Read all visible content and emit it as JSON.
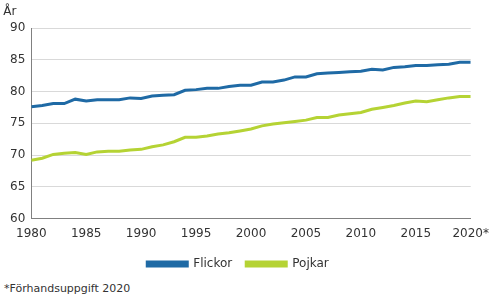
{
  "chart_data": {
    "type": "line",
    "ylabel": "År",
    "footnote": "*Förhandsuppgift 2020",
    "x": [
      1980,
      1981,
      1982,
      1983,
      1984,
      1985,
      1986,
      1987,
      1988,
      1989,
      1990,
      1991,
      1992,
      1993,
      1994,
      1995,
      1996,
      1997,
      1998,
      1999,
      2000,
      2001,
      2002,
      2003,
      2004,
      2005,
      2006,
      2007,
      2008,
      2009,
      2010,
      2011,
      2012,
      2013,
      2014,
      2015,
      2016,
      2017,
      2018,
      2019,
      2020
    ],
    "series": [
      {
        "name": "Flickor",
        "color": "#1f6aa5",
        "values": [
          77.6,
          77.8,
          78.1,
          78.1,
          78.8,
          78.5,
          78.7,
          78.7,
          78.7,
          79.0,
          78.9,
          79.3,
          79.4,
          79.5,
          80.2,
          80.3,
          80.5,
          80.5,
          80.8,
          81.0,
          81.0,
          81.5,
          81.5,
          81.8,
          82.3,
          82.3,
          82.8,
          82.9,
          83.0,
          83.1,
          83.2,
          83.5,
          83.4,
          83.8,
          83.9,
          84.1,
          84.1,
          84.2,
          84.3,
          84.6,
          84.6
        ]
      },
      {
        "name": "Pojkar",
        "color": "#b5d334",
        "values": [
          69.2,
          69.5,
          70.1,
          70.3,
          70.4,
          70.1,
          70.5,
          70.6,
          70.6,
          70.8,
          70.9,
          71.3,
          71.6,
          72.1,
          72.8,
          72.8,
          73.0,
          73.3,
          73.5,
          73.8,
          74.1,
          74.6,
          74.9,
          75.1,
          75.3,
          75.5,
          75.9,
          75.9,
          76.3,
          76.5,
          76.7,
          77.2,
          77.5,
          77.8,
          78.2,
          78.5,
          78.4,
          78.7,
          79.0,
          79.2,
          79.2
        ]
      }
    ],
    "xlim": [
      1980,
      2020
    ],
    "xticks": [
      1980,
      1985,
      1990,
      1995,
      2000,
      2005,
      2010,
      2015,
      {
        "value": 2020,
        "label": "2020*"
      }
    ],
    "ylim": [
      60,
      90
    ],
    "yticks": [
      60,
      65,
      70,
      75,
      80,
      85,
      90
    ],
    "grid": "y",
    "legend": "bottom"
  }
}
